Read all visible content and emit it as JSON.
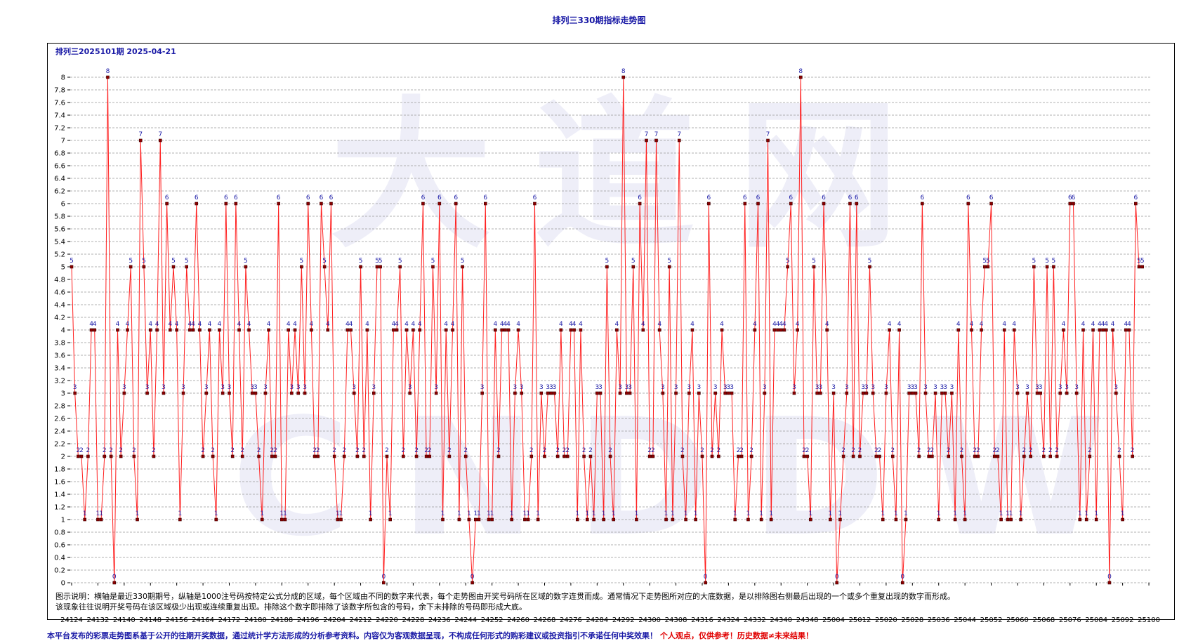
{
  "title": "排列三330期指标走势图",
  "issue_label": "排列三2025101期 2025-04-21",
  "note_line1": "图示说明：横轴是最近330期期号，纵轴是1000注号码按特定公式分成的区域，每个区域由不同的数字来代表，每个走势图由开奖号码所在区域的数字连贯而成。通常情况下走势图所对应的大底数据，是以排除图右侧最后出现的一个或多个重复出现的数字而形成。",
  "note_line2": "该现象往往说明开奖号码在该区域极少出现或连续重复出现。排除这个数字即排除了该数字所包含的号码，余下未排除的号码即形成大底。",
  "disclaimer_blue": "本平台发布的彩票走势图系基于公开的往期开奖数据，通过统计学方法形成的分析参考资料。内容仅为客观数据呈现，不构成任何形式的购彩建议或投资指引不承诺任何中奖效果！",
  "disclaimer_red": "个人观点，仅供参考！历史数据≠未来结果！",
  "colors": {
    "line": "#ff2020",
    "marker": "#8b0000",
    "label": "#1a1aa6",
    "grid": "#999999"
  },
  "chart_data": {
    "type": "line",
    "title": "排列三330期指标走势图",
    "xlabel": "",
    "ylabel": "",
    "ylim": [
      0,
      8
    ],
    "yticks": [
      0,
      0.2,
      0.4,
      0.6,
      0.8,
      1,
      1.2,
      1.4,
      1.6,
      1.8,
      2,
      2.2,
      2.4,
      2.6,
      2.8,
      3,
      3.2,
      3.4,
      3.6,
      3.8,
      4,
      4.2,
      4.4,
      4.6,
      4.8,
      5,
      5.2,
      5.4,
      5.6,
      5.8,
      6,
      6.2,
      6.4,
      6.6,
      6.8,
      7,
      7.2,
      7.4,
      7.6,
      7.8,
      8
    ],
    "xtick_labels": [
      "24124",
      "24132",
      "24140",
      "24148",
      "24156",
      "24164",
      "24172",
      "24180",
      "24188",
      "24196",
      "24204",
      "24212",
      "24220",
      "24228",
      "24236",
      "24244",
      "24252",
      "24260",
      "24268",
      "24276",
      "24284",
      "24292",
      "24300",
      "24308",
      "24316",
      "24324",
      "24332",
      "24340",
      "24348",
      "25004",
      "25012",
      "25020",
      "25028",
      "25036",
      "25044",
      "25052",
      "25060",
      "25068",
      "25076",
      "25084",
      "25092",
      "25100"
    ],
    "grid": true,
    "legend": "none",
    "values": [
      5,
      3,
      2,
      2,
      1,
      2,
      4,
      4,
      1,
      1,
      2,
      8,
      2,
      0,
      4,
      2,
      3,
      4,
      5,
      2,
      1,
      7,
      5,
      3,
      4,
      2,
      4,
      7,
      3,
      6,
      4,
      5,
      4,
      1,
      3,
      5,
      4,
      4,
      6,
      4,
      2,
      3,
      4,
      2,
      1,
      4,
      3,
      6,
      3,
      2,
      6,
      4,
      2,
      5,
      4,
      3,
      3,
      2,
      1,
      3,
      4,
      2,
      2,
      6,
      1,
      1,
      4,
      3,
      4,
      3,
      5,
      3,
      6,
      4,
      2,
      2,
      6,
      5,
      4,
      6,
      2,
      1,
      1,
      2,
      4,
      4,
      3,
      2,
      5,
      2,
      4,
      1,
      3,
      5,
      5,
      0,
      2,
      1,
      4,
      4,
      5,
      2,
      4,
      3,
      4,
      2,
      4,
      6,
      2,
      2,
      5,
      3,
      6,
      1,
      4,
      2,
      4,
      6,
      1,
      5,
      2,
      1,
      0,
      1,
      1,
      3,
      6,
      1,
      1,
      4,
      2,
      4,
      4,
      4,
      1,
      3,
      4,
      3,
      1,
      1,
      2,
      6,
      1,
      3,
      2,
      3,
      3,
      3,
      2,
      4,
      2,
      2,
      4,
      4,
      1,
      4,
      2,
      1,
      2,
      1,
      3,
      3,
      1,
      5,
      2,
      1,
      4,
      3,
      8,
      3,
      3,
      5,
      1,
      6,
      4,
      7,
      2,
      2,
      7,
      4,
      3,
      1,
      5,
      1,
      3,
      7,
      2,
      1,
      3,
      4,
      1,
      3,
      2,
      0,
      6,
      2,
      3,
      2,
      4,
      3,
      3,
      3,
      1,
      2,
      2,
      6,
      1,
      2,
      4,
      6,
      1,
      3,
      7,
      1,
      4,
      4,
      4,
      4,
      5,
      6,
      3,
      4,
      8,
      2,
      2,
      1,
      5,
      3,
      3,
      6,
      4,
      1,
      3,
      0,
      1,
      2,
      3,
      6,
      2,
      6,
      2,
      3,
      3,
      5,
      3,
      2,
      2,
      1,
      3,
      4,
      2,
      1,
      4,
      0,
      1,
      3,
      3,
      3,
      2,
      6,
      3,
      2,
      2,
      3,
      1,
      3,
      3,
      2,
      3,
      1,
      4,
      2,
      1,
      6,
      4,
      2,
      2,
      4,
      5,
      5,
      6,
      2,
      2,
      1,
      4,
      1,
      1,
      4,
      3,
      1,
      2,
      3,
      2,
      5,
      3,
      3,
      2,
      5,
      2,
      5,
      2,
      3,
      4,
      3,
      6,
      6,
      3,
      1,
      4,
      1,
      2,
      4,
      1,
      4,
      4,
      4,
      0,
      4,
      3,
      2,
      1,
      4,
      4,
      2,
      6,
      5,
      5
    ]
  }
}
